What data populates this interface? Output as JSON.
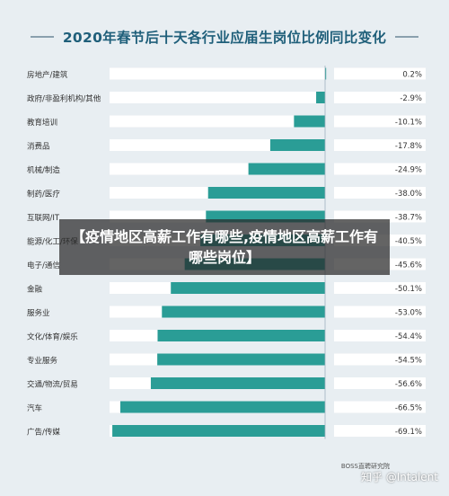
{
  "overlay": {
    "banner_text": "【疫情地区高薪工作有哪些,疫情地区高薪工作有哪些岗位】",
    "watermark": "知乎 @Intalent"
  },
  "source": "BOSS直聘研究院",
  "colors": {
    "bar": "#2a9d96",
    "track": "#ffffff",
    "background": "#e8eef2",
    "title": "#1f5f7a",
    "text": "#333333"
  },
  "chart_data": {
    "type": "bar",
    "orientation": "horizontal",
    "title": "2020年春节后十天各行业应届生岗位比例同比变化",
    "xlabel": "",
    "ylabel": "",
    "categories": [
      "房地产/建筑",
      "政府/非盈利机构/其他",
      "教育培训",
      "消费品",
      "机械/制造",
      "制药/医疗",
      "互联网/IT",
      "能源/化工/环保",
      "电子/通信",
      "金融",
      "服务业",
      "文化/体育/娱乐",
      "专业服务",
      "交通/物流/贸易",
      "汽车",
      "广告/传媒"
    ],
    "values": [
      0.2,
      -2.9,
      -10.1,
      -17.8,
      -24.9,
      -38.0,
      -38.7,
      -40.5,
      -45.6,
      -50.1,
      -53.0,
      -54.4,
      -54.5,
      -56.6,
      -66.5,
      -69.1
    ],
    "value_labels": [
      "0.2%",
      "-2.9%",
      "-10.1%",
      "-17.8%",
      "-24.9%",
      "-38.0%",
      "-38.7%",
      "-40.5%",
      "-45.6%",
      "-50.1%",
      "-53.0%",
      "-54.4%",
      "-54.5%",
      "-56.6%",
      "-66.5%",
      "-69.1%"
    ],
    "xlim": [
      -70,
      0.5
    ],
    "unit": "%",
    "grid": false,
    "legend": "none"
  }
}
